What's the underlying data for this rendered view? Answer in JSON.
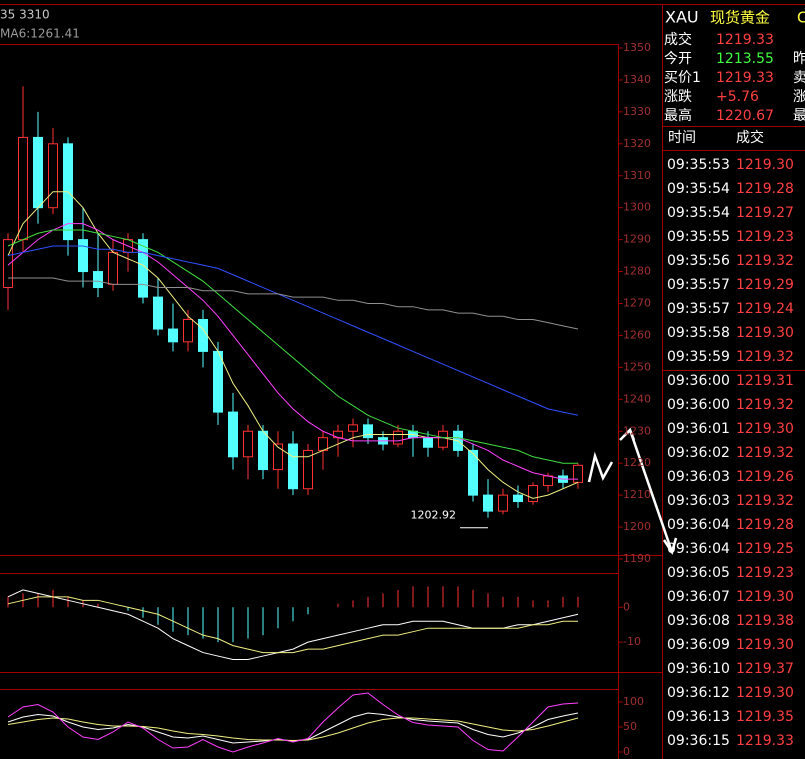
{
  "chart_header": {
    "left_text": "35 3310",
    "ma_label": "MA6:1261.41"
  },
  "chart_data": [
    {
      "type": "candlestick",
      "up_color": "#ff3232",
      "down_color": "#54ffff",
      "open": [
        1275,
        1290,
        1322,
        1300,
        1320,
        1290,
        1280,
        1276,
        1286,
        1290,
        1272,
        1262,
        1258,
        1265,
        1255,
        1236,
        1222,
        1230,
        1218,
        1226,
        1212,
        1224,
        1228,
        1230,
        1232,
        1228,
        1226,
        1230,
        1228,
        1225,
        1230,
        1224,
        1210,
        1205,
        1210,
        1208,
        1213,
        1216,
        1214
      ],
      "high": [
        1292,
        1338,
        1330,
        1325,
        1322,
        1300,
        1292,
        1290,
        1292,
        1292,
        1278,
        1270,
        1268,
        1268,
        1258,
        1242,
        1232,
        1232,
        1230,
        1230,
        1226,
        1230,
        1232,
        1234,
        1234,
        1230,
        1232,
        1232,
        1230,
        1232,
        1232,
        1226,
        1215,
        1212,
        1213,
        1214,
        1217,
        1218,
        1220
      ],
      "low": [
        1268,
        1286,
        1295,
        1298,
        1285,
        1275,
        1272,
        1274,
        1280,
        1270,
        1260,
        1255,
        1255,
        1250,
        1232,
        1218,
        1215,
        1215,
        1212,
        1210,
        1210,
        1218,
        1222,
        1225,
        1226,
        1224,
        1225,
        1222,
        1222,
        1224,
        1222,
        1208,
        1202.92,
        1204,
        1206,
        1207,
        1211,
        1212,
        1212
      ],
      "close": [
        1290,
        1322,
        1300,
        1320,
        1290,
        1280,
        1275,
        1286,
        1290,
        1272,
        1262,
        1258,
        1265,
        1255,
        1236,
        1222,
        1230,
        1218,
        1226,
        1212,
        1224,
        1228,
        1230,
        1232,
        1228,
        1226,
        1230,
        1228,
        1225,
        1230,
        1224,
        1210,
        1205,
        1210,
        1208,
        1213,
        1216,
        1214,
        1219.33
      ],
      "low_label": "1202.92",
      "series": [
        {
          "color": "#f0f080",
          "values": [
            1285,
            1295,
            1300,
            1305,
            1305,
            1300,
            1292,
            1286,
            1284,
            1282,
            1278,
            1272,
            1266,
            1262,
            1255,
            1245,
            1238,
            1230,
            1225,
            1222,
            1222,
            1224,
            1226,
            1228,
            1229,
            1229,
            1229,
            1229,
            1228,
            1228,
            1227,
            1223,
            1218,
            1214,
            1211,
            1209,
            1210,
            1212,
            1214
          ]
        },
        {
          "color": "#ff40ff",
          "values": [
            1282,
            1286,
            1290,
            1293,
            1295,
            1295,
            1293,
            1290,
            1288,
            1286,
            1283,
            1279,
            1275,
            1271,
            1266,
            1260,
            1254,
            1248,
            1242,
            1237,
            1233,
            1230,
            1228,
            1227,
            1227,
            1227,
            1227,
            1228,
            1228,
            1228,
            1228,
            1226,
            1224,
            1221,
            1219,
            1217,
            1216,
            1215,
            1215
          ]
        },
        {
          "color": "#40e040",
          "values": [
            1288,
            1290,
            1292,
            1293,
            1293,
            1293,
            1292,
            1291,
            1290,
            1288,
            1286,
            1283,
            1280,
            1277,
            1273,
            1269,
            1265,
            1261,
            1257,
            1253,
            1249,
            1245,
            1241,
            1238,
            1235,
            1233,
            1231,
            1230,
            1229,
            1228,
            1228,
            1227,
            1226,
            1225,
            1224,
            1222,
            1221,
            1220,
            1220
          ]
        },
        {
          "color": "#3050ff",
          "values": [
            1285,
            1286,
            1287,
            1288,
            1288,
            1288,
            1287,
            1287,
            1286,
            1286,
            1285,
            1284,
            1283,
            1282,
            1281,
            1279,
            1277,
            1275,
            1273,
            1271,
            1269,
            1267,
            1265,
            1263,
            1261,
            1259,
            1257,
            1255,
            1253,
            1251,
            1249,
            1247,
            1245,
            1243,
            1241,
            1239,
            1237,
            1236,
            1235
          ]
        },
        {
          "color": "#909090",
          "values": [
            1278,
            1278,
            1278,
            1278,
            1277,
            1277,
            1277,
            1276,
            1276,
            1276,
            1275,
            1275,
            1275,
            1274,
            1274,
            1274,
            1273,
            1273,
            1273,
            1272,
            1272,
            1272,
            1271,
            1271,
            1270,
            1270,
            1269,
            1269,
            1268,
            1268,
            1267,
            1267,
            1266,
            1266,
            1265,
            1265,
            1264,
            1263,
            1262
          ]
        }
      ],
      "ylim": [
        1190,
        1350
      ],
      "yticks": [
        1190,
        1200,
        1210,
        1220,
        1230,
        1240,
        1250,
        1260,
        1270,
        1280,
        1290,
        1300,
        1310,
        1320,
        1330,
        1340,
        1350
      ]
    },
    {
      "type": "macd",
      "up_color": "#ff3232",
      "down_color": "#54ffff",
      "values": [
        3,
        4,
        4,
        5,
        3,
        2,
        1,
        0,
        -1,
        -3,
        -5,
        -7,
        -8,
        -9,
        -10,
        -10,
        -9,
        -8,
        -6,
        -4,
        -2,
        0,
        1,
        2,
        3,
        4,
        5,
        6,
        6,
        6,
        6,
        5,
        4,
        3,
        3,
        2,
        2,
        3,
        3
      ],
      "series": [
        {
          "color": "#ffffff",
          "values": [
            3,
            5,
            4,
            3,
            2,
            1,
            0,
            -1,
            -2,
            -4,
            -6,
            -9,
            -11,
            -13,
            -14,
            -15,
            -15,
            -14,
            -13,
            -12,
            -10,
            -9,
            -8,
            -7,
            -6,
            -5,
            -5,
            -4,
            -4,
            -4,
            -5,
            -6,
            -6,
            -6,
            -5,
            -5,
            -4,
            -3,
            -2
          ]
        },
        {
          "color": "#f0f080",
          "values": [
            1,
            2,
            3,
            3,
            3,
            2,
            2,
            1,
            0,
            -1,
            -2,
            -4,
            -6,
            -8,
            -9,
            -11,
            -12,
            -13,
            -13,
            -13,
            -12,
            -12,
            -11,
            -10,
            -9,
            -8,
            -8,
            -7,
            -6,
            -6,
            -6,
            -6,
            -6,
            -6,
            -6,
            -5,
            -5,
            -4,
            -4
          ]
        }
      ],
      "ylim": [
        -18,
        13
      ],
      "yticks": [
        -10,
        0
      ]
    },
    {
      "type": "kdj",
      "series": [
        {
          "color": "#ffffff",
          "values": [
            60,
            70,
            75,
            72,
            60,
            50,
            45,
            48,
            55,
            50,
            40,
            30,
            28,
            32,
            25,
            18,
            20,
            22,
            25,
            22,
            25,
            40,
            55,
            70,
            78,
            75,
            70,
            65,
            62,
            60,
            58,
            45,
            35,
            30,
            38,
            50,
            65,
            72,
            78
          ]
        },
        {
          "color": "#f0f080",
          "values": [
            55,
            60,
            65,
            68,
            66,
            60,
            55,
            52,
            52,
            51,
            48,
            42,
            37,
            35,
            32,
            28,
            25,
            24,
            24,
            23,
            24,
            30,
            38,
            48,
            58,
            65,
            68,
            68,
            66,
            64,
            62,
            56,
            50,
            44,
            42,
            45,
            52,
            60,
            68
          ]
        },
        {
          "color": "#ff40ff",
          "values": [
            70,
            90,
            95,
            80,
            50,
            30,
            25,
            40,
            60,
            48,
            25,
            8,
            10,
            25,
            10,
            0,
            10,
            18,
            27,
            20,
            27,
            60,
            88,
            114,
            118,
            95,
            74,
            59,
            54,
            52,
            50,
            23,
            5,
            2,
            30,
            60,
            90,
            96,
            98
          ]
        }
      ],
      "ylim": [
        -14,
        124
      ],
      "yticks": [
        0,
        50,
        100
      ]
    }
  ],
  "quote": {
    "symbol": "XAU",
    "name": "现货黄金",
    "tag": "C",
    "rows": [
      [
        "成交",
        "1219.33"
      ],
      [
        "今开",
        "1213.55"
      ],
      [
        "买价1",
        "1219.33"
      ],
      [
        "涨跌",
        "+5.76"
      ],
      [
        "最高",
        "1220.67"
      ]
    ],
    "side_labels": [
      "昨",
      "卖",
      "涨",
      "最"
    ]
  },
  "trades": {
    "header": [
      "时间",
      "成交"
    ],
    "rows": [
      [
        "09:35:53",
        "1219.30"
      ],
      [
        "09:35:54",
        "1219.28"
      ],
      [
        "09:35:54",
        "1219.27"
      ],
      [
        "09:35:55",
        "1219.23"
      ],
      [
        "09:35:56",
        "1219.32"
      ],
      [
        "09:35:57",
        "1219.29"
      ],
      [
        "09:35:57",
        "1219.24"
      ],
      [
        "09:35:58",
        "1219.30"
      ],
      [
        "09:35:59",
        "1219.32"
      ],
      [
        "09:36:00",
        "1219.31"
      ],
      [
        "09:36:00",
        "1219.32"
      ],
      [
        "09:36:01",
        "1219.30"
      ],
      [
        "09:36:02",
        "1219.32"
      ],
      [
        "09:36:03",
        "1219.26"
      ],
      [
        "09:36:03",
        "1219.32"
      ],
      [
        "09:36:04",
        "1219.28"
      ],
      [
        "09:36:04",
        "1219.25"
      ],
      [
        "09:36:05",
        "1219.23"
      ],
      [
        "09:36:07",
        "1219.30"
      ],
      [
        "09:36:08",
        "1219.38"
      ],
      [
        "09:36:09",
        "1219.30"
      ],
      [
        "09:36:10",
        "1219.37"
      ],
      [
        "09:36:12",
        "1219.30"
      ],
      [
        "09:36:13",
        "1219.35"
      ],
      [
        "09:36:15",
        "1219.33"
      ]
    ]
  }
}
